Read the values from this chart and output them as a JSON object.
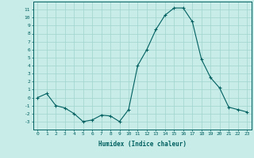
{
  "x": [
    0,
    1,
    2,
    3,
    4,
    5,
    6,
    7,
    8,
    9,
    10,
    11,
    12,
    13,
    14,
    15,
    16,
    17,
    18,
    19,
    20,
    21,
    22,
    23
  ],
  "y": [
    0,
    0.5,
    -1,
    -1.3,
    -2,
    -3,
    -2.8,
    -2.2,
    -2.3,
    -3,
    -1.5,
    4,
    6,
    8.5,
    10.3,
    11.2,
    11.2,
    9.5,
    4.8,
    2.5,
    1.2,
    -1.2,
    -1.5,
    -1.8
  ],
  "line_color": "#006060",
  "marker": "+",
  "marker_size": 3,
  "bg_color": "#c8ece8",
  "grid_color": "#a0d4cf",
  "axis_color": "#006060",
  "xlabel": "Humidex (Indice chaleur)",
  "xlabel_fontsize": 5.5,
  "ylabel_ticks": [
    11,
    10,
    9,
    8,
    7,
    6,
    5,
    4,
    3,
    2,
    1,
    0,
    -1,
    -2,
    -3
  ],
  "ylim": [
    -4,
    12
  ],
  "xlim": [
    -0.5,
    23.5
  ],
  "xticks": [
    0,
    1,
    2,
    3,
    4,
    5,
    6,
    7,
    8,
    9,
    10,
    11,
    12,
    13,
    14,
    15,
    16,
    17,
    18,
    19,
    20,
    21,
    22,
    23
  ],
  "tick_fontsize": 4.5
}
